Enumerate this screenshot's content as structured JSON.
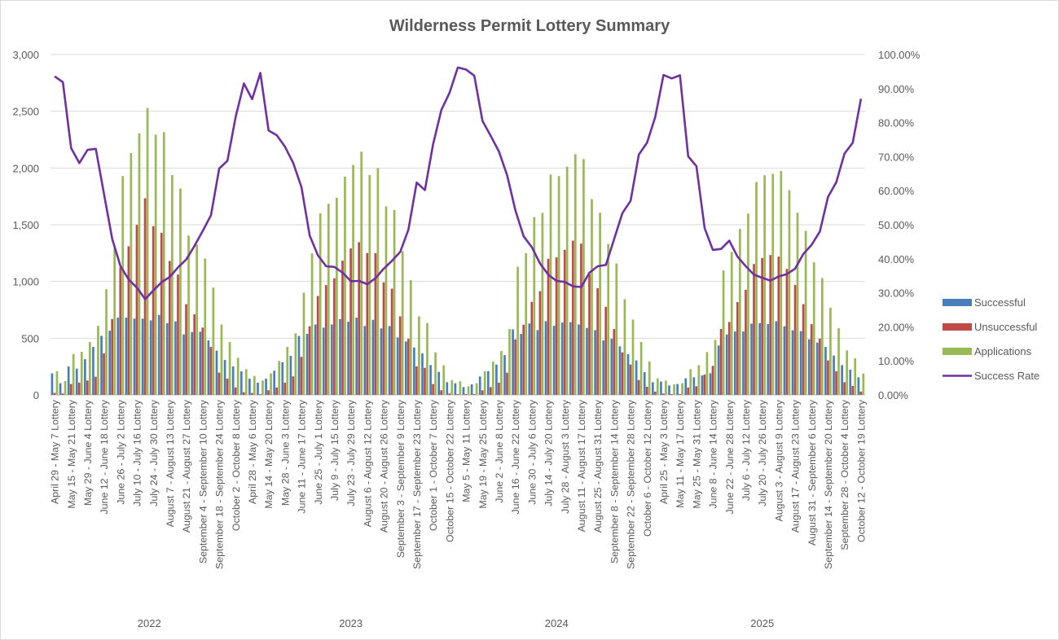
{
  "chart_data": {
    "type": "bar",
    "title": "Wilderness Permit Lottery Summary",
    "legend_position": "right",
    "grid": true,
    "y_left": {
      "min": 0,
      "max": 3000,
      "ticks": [
        "0",
        "500",
        "1,000",
        "1,500",
        "2,000",
        "2,500",
        "3,000"
      ]
    },
    "y_right": {
      "min": 0,
      "max": 1,
      "ticks": [
        "0.00%",
        "10.00%",
        "20.00%",
        "30.00%",
        "40.00%",
        "50.00%",
        "60.00%",
        "70.00%",
        "80.00%",
        "90.00%",
        "100.00%"
      ]
    },
    "years": [
      {
        "label": "2022",
        "count": 24
      },
      {
        "label": "2023",
        "count": 25
      },
      {
        "label": "2024",
        "count": 25
      },
      {
        "label": "2025",
        "count": 25
      }
    ],
    "categories": [
      "April 29 - May 7 Lottery",
      "",
      "May 15 - May 21 Lottery",
      "",
      "May 29 - June 4 Lottery",
      "",
      "June 12 - June 18 Lottery",
      "",
      "June 26 - July 2 Lottery",
      "",
      "July 10 - July 16 Lottery",
      "",
      "July 24 - July 30 Lottery",
      "",
      "August 7 - August 13 Lottery",
      "",
      "August 21 - August 27 Lottery",
      "",
      "September 4 - September 10 Lottery",
      "",
      "September 18 - September 24 Lottery",
      "",
      "October 2 - October 8 Lottery",
      "",
      "April 28 - May 6 Lottery",
      "",
      "May 14 - May 20 Lottery",
      "",
      "May 28 - June 3 Lottery",
      "",
      "June 11 - June 17 Lottery",
      "",
      "June 25 - July 1 Lottery",
      "",
      "July 9 - July 15 Lottery",
      "",
      "July 23 - July 29 Lottery",
      "",
      "August 6 - August 12 Lottery",
      "",
      "August 20 - August 26 Lottery",
      "",
      "September 3 - September 9 Lottery",
      "",
      "September 17 - September 23 Lottery",
      "",
      "October 1 - October 7 Lottery",
      "",
      "October 15 - October 22 Lottery",
      "",
      "May 5 - May 11 Lottery",
      "",
      "May 19 - May 25 Lottery",
      "",
      "June 2 - June 8 Lottery",
      "",
      "June 16 - June 22 Lottery",
      "",
      "June 30 - July 6 Lottery",
      "",
      "July 14 - July 20 Lottery",
      "",
      "July 28 - August 3 Lottery",
      "",
      "August 11 - August 17 Lottery",
      "",
      "August 25 - August 31 Lottery",
      "",
      "September 8 - September 14 Lottery",
      "",
      "September 22 - September 28 Lottery",
      "",
      "October 6 - October 12 Lottery",
      "",
      "April 25 - May 3 Lottery",
      "",
      "May 11 - May 17 Lottery",
      "",
      "May 25 - May 31 Lottery",
      "",
      "June 8 - June 14 Lottery",
      "",
      "June 22 - June 28 Lottery",
      "",
      "July 6 - July 12 Lottery",
      "",
      "July 20 - July 26 Lottery",
      "",
      "August 3 - August 9 Lottery",
      "",
      "August 17 - August 23 Lottery",
      "",
      "August 31 - September 6 Lottery",
      "",
      "September 14 - September 20 Lottery",
      "",
      "September 28 - October 4 Lottery",
      "",
      "October 12 - October 19 Lottery"
    ],
    "series": [
      {
        "name": "Successful",
        "type": "bar",
        "axis": "left",
        "color": "#4a7ebb",
        "values": [
          190,
          103,
          251,
          232,
          315,
          423,
          521,
          566,
          681,
          681,
          672,
          672,
          657,
          705,
          633,
          648,
          533,
          554,
          557,
          480,
          390,
          308,
          251,
          208,
          143,
          108,
          143,
          213,
          287,
          344,
          519,
          538,
          621,
          593,
          621,
          669,
          645,
          681,
          607,
          662,
          586,
          607,
          507,
          471,
          418,
          366,
          263,
          203,
          112,
          103,
          69,
          93,
          163,
          210,
          268,
          351,
          578,
          538,
          629,
          571,
          650,
          609,
          638,
          641,
          621,
          590,
          571,
          480,
          495,
          428,
          359,
          304,
          201,
          112,
          117,
          84,
          96,
          146,
          155,
          172,
          191,
          435,
          533,
          559,
          559,
          629,
          633,
          624,
          650,
          605,
          569,
          562,
          490,
          461,
          423,
          347,
          263,
          222,
          155
        ]
      },
      {
        "name": "Unsuccessful",
        "type": "bar",
        "axis": "left",
        "color": "#be4b48",
        "values": [
          17,
          12,
          96,
          108,
          127,
          160,
          366,
          669,
          1123,
          1310,
          1499,
          1733,
          1487,
          1429,
          1181,
          1061,
          800,
          710,
          593,
          423,
          196,
          143,
          65,
          24,
          17,
          7,
          41,
          65,
          108,
          163,
          335,
          605,
          872,
          968,
          1028,
          1183,
          1291,
          1346,
          1250,
          1250,
          992,
          937,
          693,
          495,
          251,
          239,
          96,
          41,
          12,
          7,
          7,
          7,
          41,
          69,
          108,
          196,
          490,
          619,
          820,
          915,
          1200,
          1212,
          1279,
          1360,
          1334,
          1064,
          940,
          777,
          581,
          375,
          268,
          131,
          72,
          29,
          12,
          7,
          7,
          65,
          76,
          179,
          256,
          581,
          643,
          818,
          927,
          1154,
          1207,
          1233,
          1219,
          1111,
          970,
          800,
          624,
          495,
          304,
          208,
          112,
          79,
          29
        ]
      },
      {
        "name": "Applications",
        "type": "bar",
        "axis": "left",
        "color": "#98b954",
        "values": [
          208,
          122,
          361,
          380,
          466,
          609,
          932,
          1291,
          1929,
          2132,
          2306,
          2529,
          2294,
          2316,
          1938,
          1819,
          1405,
          1326,
          1202,
          946,
          621,
          466,
          327,
          227,
          167,
          127,
          189,
          299,
          423,
          543,
          901,
          1248,
          1601,
          1685,
          1738,
          1924,
          2027,
          2144,
          1938,
          2000,
          1661,
          1630,
          1267,
          1011,
          693,
          633,
          375,
          261,
          131,
          120,
          76,
          103,
          210,
          294,
          387,
          581,
          1130,
          1250,
          1568,
          1604,
          1943,
          1929,
          2012,
          2122,
          2079,
          1726,
          1606,
          1331,
          1159,
          844,
          664,
          466,
          294,
          146,
          127,
          93,
          103,
          227,
          261,
          378,
          485,
          1097,
          1260,
          1463,
          1599,
          1877,
          1936,
          1948,
          1974,
          1804,
          1606,
          1446,
          1169,
          1030,
          769,
          588,
          392,
          323,
          189
        ]
      },
      {
        "name": "Success Rate",
        "type": "line",
        "axis": "right",
        "color": "#7030a0",
        "values": [
          0.936,
          0.919,
          0.725,
          0.681,
          0.72,
          0.723,
          0.59,
          0.458,
          0.378,
          0.339,
          0.315,
          0.281,
          0.307,
          0.331,
          0.347,
          0.375,
          0.398,
          0.438,
          0.482,
          0.528,
          0.665,
          0.688,
          0.817,
          0.915,
          0.869,
          0.946,
          0.777,
          0.763,
          0.729,
          0.681,
          0.61,
          0.468,
          0.41,
          0.378,
          0.376,
          0.359,
          0.334,
          0.335,
          0.325,
          0.343,
          0.371,
          0.394,
          0.42,
          0.486,
          0.624,
          0.602,
          0.737,
          0.837,
          0.888,
          0.962,
          0.956,
          0.938,
          0.805,
          0.761,
          0.715,
          0.645,
          0.542,
          0.466,
          0.434,
          0.386,
          0.353,
          0.335,
          0.332,
          0.319,
          0.317,
          0.359,
          0.378,
          0.382,
          0.458,
          0.534,
          0.57,
          0.706,
          0.741,
          0.817,
          0.94,
          0.93,
          0.939,
          0.701,
          0.672,
          0.49,
          0.426,
          0.429,
          0.453,
          0.406,
          0.378,
          0.353,
          0.344,
          0.336,
          0.348,
          0.355,
          0.371,
          0.414,
          0.441,
          0.48,
          0.582,
          0.625,
          0.709,
          0.741,
          0.87
        ]
      }
    ]
  }
}
